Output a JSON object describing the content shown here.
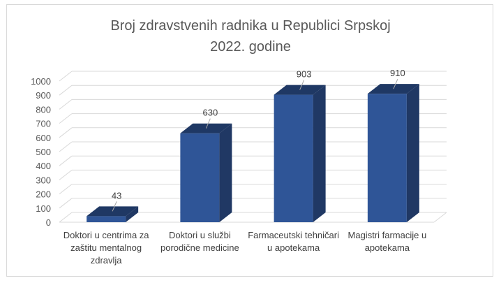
{
  "chart_data": {
    "type": "bar",
    "title_line1": "Broj zdravstvenih radnika u Republici Srpskoj",
    "title_line2": "2022. godine",
    "categories": [
      "Doktori u centrima za zaštitu mentalnog zdravlja",
      "Doktori u službi porodične medicine",
      "Farmaceutski tehničari u apotekama",
      "Magistri farmacije u apotekama"
    ],
    "values": [
      43,
      630,
      903,
      910
    ],
    "data_labels": [
      "43",
      "630",
      "903",
      "910"
    ],
    "ylim": [
      0,
      1000
    ],
    "yticks": [
      "0",
      "100",
      "200",
      "300",
      "400",
      "500",
      "600",
      "700",
      "800",
      "900",
      "1000"
    ],
    "grid": true,
    "legend": "none",
    "bar_color": "#2F5597",
    "bar_top_color": "#1F3864",
    "bar_side_color": "#203864"
  }
}
